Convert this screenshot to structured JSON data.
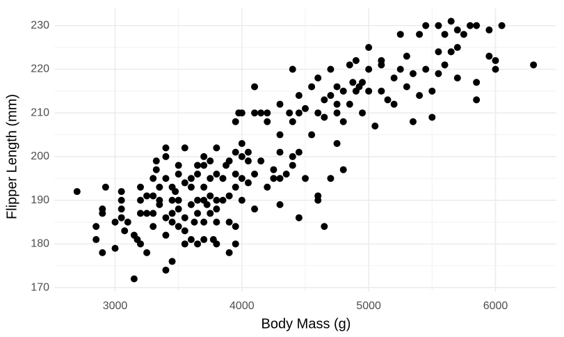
{
  "chart_data": {
    "type": "scatter",
    "x_label": "Body Mass (g)",
    "y_label": "Flipper Length (mm)",
    "color": "#000000",
    "grid": true,
    "xlim": [
      2520,
      6480
    ],
    "ylim": [
      169.05,
      233.95
    ],
    "xticks": [
      3000,
      4000,
      5000,
      6000
    ],
    "yticks": [
      170,
      180,
      190,
      200,
      210,
      220,
      230
    ],
    "xminor": [
      2500,
      3500,
      4500,
      5500
    ],
    "yminor": [
      175,
      185,
      195,
      205,
      215,
      225
    ],
    "x": [
      2700,
      2850,
      2850,
      2900,
      2900,
      2900,
      2925,
      3000,
      3000,
      3050,
      3050,
      3050,
      3050,
      3075,
      3100,
      3150,
      3150,
      3175,
      3200,
      3200,
      3200,
      3200,
      3250,
      3250,
      3250,
      3300,
      3300,
      3300,
      3300,
      3325,
      3325,
      3350,
      3350,
      3350,
      3400,
      3400,
      3400,
      3400,
      3400,
      3400,
      3450,
      3450,
      3450,
      3450,
      3450,
      3475,
      3500,
      3500,
      3500,
      3500,
      3500,
      3550,
      3550,
      3550,
      3550,
      3550,
      3600,
      3600,
      3600,
      3600,
      3625,
      3650,
      3650,
      3650,
      3650,
      3650,
      3700,
      3700,
      3700,
      3700,
      3700,
      3700,
      3725,
      3750,
      3750,
      3750,
      3750,
      3775,
      3800,
      3800,
      3800,
      3800,
      3800,
      3800,
      3850,
      3850,
      3875,
      3900,
      3900,
      3900,
      3900,
      3950,
      3950,
      3950,
      3950,
      3950,
      3950,
      3975,
      4000,
      4000,
      4000,
      4000,
      4000,
      4050,
      4050,
      4050,
      4100,
      4100,
      4100,
      4150,
      4150,
      4200,
      4200,
      4250,
      4250,
      4300,
      4300,
      4300,
      4300,
      4300,
      4350,
      4375,
      4400,
      4400,
      4400,
      4450,
      4450,
      4450,
      4450,
      4500,
      4500,
      4550,
      4600,
      4600,
      4600,
      4600,
      4650,
      4650,
      4700,
      4700,
      4700,
      4750,
      4750,
      4750,
      4750,
      4800,
      4800,
      4800,
      4850,
      4875,
      4900,
      4900,
      4950,
      4950,
      5000,
      5000,
      5000,
      5050,
      5100,
      5100,
      5150,
      5200,
      5200,
      5250,
      5300,
      5300,
      5350,
      5400,
      5400,
      5450,
      5450,
      5500,
      5500,
      5550,
      5550,
      5600,
      5650,
      5650,
      5700,
      5700,
      5750,
      5800,
      5850,
      5850,
      5850,
      5950,
      5950,
      6000,
      6000,
      6050,
      6300,
      4100,
      4200,
      4550,
      4925,
      5250,
      5550,
      5600,
      5100,
      5350,
      5700,
      4650,
      4850,
      4400
    ],
    "values": [
      192,
      184,
      181,
      178,
      187,
      188,
      193,
      185,
      179,
      192,
      190,
      188,
      186,
      183,
      185,
      172,
      182,
      181,
      187,
      190,
      193,
      180,
      178,
      187,
      191,
      195,
      191,
      187,
      184,
      197,
      199,
      190,
      193,
      189,
      174,
      186,
      195,
      200,
      202,
      182,
      176,
      190,
      193,
      187,
      185,
      192,
      190,
      196,
      198,
      188,
      184,
      202,
      194,
      186,
      180,
      183,
      181,
      193,
      189,
      195,
      185,
      180,
      187,
      190,
      196,
      198,
      185,
      190,
      193,
      198,
      200,
      181,
      189,
      187,
      191,
      195,
      199,
      181,
      190,
      188,
      185,
      196,
      202,
      180,
      190,
      195,
      198,
      178,
      185,
      191,
      199,
      180,
      184,
      193,
      196,
      201,
      208,
      210,
      195,
      200,
      203,
      210,
      190,
      201,
      199,
      194,
      188,
      196,
      216,
      210,
      199,
      193,
      208,
      195,
      197,
      189,
      205,
      212,
      195,
      201,
      196,
      210,
      208,
      200,
      198,
      186,
      201,
      210,
      214,
      195,
      211,
      205,
      190,
      191,
      210,
      218,
      184,
      209,
      214,
      220,
      195,
      203,
      210,
      212,
      216,
      197,
      208,
      215,
      212,
      217,
      215,
      222,
      210,
      217,
      215,
      225,
      220,
      207,
      215,
      221,
      213,
      212,
      218,
      220,
      223,
      216,
      208,
      214,
      228,
      230,
      220,
      209,
      215,
      219,
      230,
      221,
      224,
      231,
      225,
      218,
      228,
      230,
      213,
      217,
      230,
      229,
      223,
      220,
      222,
      230,
      221,
      210,
      210,
      216,
      216,
      228,
      224,
      228,
      222,
      219,
      229,
      213,
      221,
      220
    ]
  }
}
